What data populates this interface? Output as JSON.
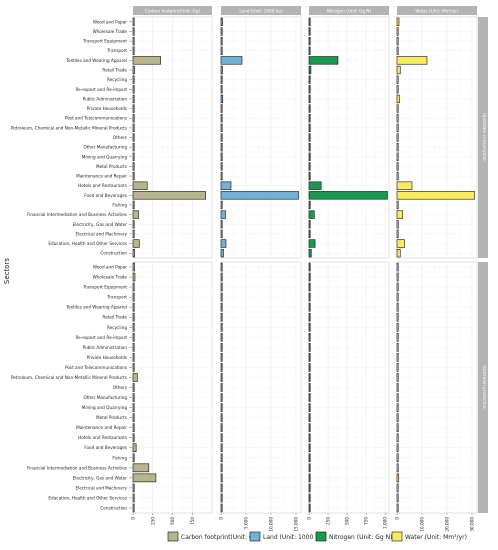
{
  "chart_data": {
    "type": "bar",
    "orientation": "horizontal",
    "facet_type": "grid",
    "ylabel": "Sectors",
    "categories": [
      "Wood and Paper",
      "Wholesale Trade",
      "Transport Equipment",
      "Transport",
      "Textiles and Wearing Apparel",
      "Retail Trade",
      "Recycling",
      "Re-export and Re-import",
      "Public Administration",
      "Private Households",
      "Post and Telecommunications",
      "Petroleum, Chemical and Non-Metallic Mineral Products",
      "Others",
      "Other Manufacturing",
      "Mining and Quarrying",
      "Metal Products",
      "Maintenance and Repair",
      "Hotels and Restaurants",
      "Food and Beverages",
      "Fishing",
      "Financial Intermediation and Business Activities",
      "Electricity, Gas and Water",
      "Electrical and Machinery",
      "Education, Health and Other Services",
      "Construction"
    ],
    "columns": [
      {
        "label": "Carbon footprint(Unit: Gg)",
        "color": "#b5b58f",
        "xlim": [
          0,
          1000
        ],
        "ticks": [
          0,
          250,
          500,
          750
        ]
      },
      {
        "label": "Land (Unit: 1000 ha)",
        "color": "#73b0d8",
        "xlim": [
          0,
          16000
        ],
        "ticks": [
          0,
          5000,
          10000,
          15000
        ]
      },
      {
        "label": "Nitrogen (Unit: Gg N)",
        "color": "#199950",
        "xlim": [
          0,
          1050
        ],
        "ticks": [
          0,
          250,
          500,
          750,
          1000
        ]
      },
      {
        "label": "Water (Unit: Mm³/yr)",
        "color": "#f7eb5f",
        "xlim": [
          0,
          32000
        ],
        "ticks": [
          0,
          10000,
          20000,
          30000
        ]
      }
    ],
    "rows": [
      {
        "label": "Upstream consumption",
        "series": [
          {
            "column": 0,
            "values": [
              15,
              6,
              4,
              5,
              350,
              20,
              5,
              5,
              12,
              5,
              5,
              8,
              5,
              6,
              5,
              5,
              5,
              180,
              920,
              5,
              70,
              8,
              6,
              80,
              20
            ]
          },
          {
            "column": 1,
            "values": [
              300,
              100,
              80,
              90,
              4200,
              300,
              60,
              60,
              350,
              60,
              60,
              150,
              60,
              100,
              60,
              60,
              60,
              2000,
              15500,
              60,
              900,
              150,
              100,
              1000,
              500
            ]
          },
          {
            "column": 2,
            "values": [
              15,
              5,
              4,
              5,
              380,
              25,
              4,
              4,
              15,
              4,
              4,
              8,
              4,
              6,
              4,
              4,
              4,
              160,
              1030,
              4,
              70,
              8,
              5,
              80,
              30
            ]
          },
          {
            "column": 3,
            "values": [
              800,
              300,
              300,
              300,
              12000,
              1300,
              200,
              200,
              1000,
              200,
              200,
              500,
              200,
              300,
              200,
              200,
              200,
              6000,
              31000,
              200,
              2300,
              500,
              300,
              3000,
              1300
            ]
          }
        ]
      },
      {
        "label": "Upstream production",
        "series": [
          {
            "column": 0,
            "values": [
              20,
              25,
              8,
              15,
              6,
              6,
              5,
              5,
              5,
              5,
              5,
              55,
              5,
              8,
              15,
              10,
              5,
              5,
              40,
              5,
              200,
              290,
              15,
              10,
              5
            ]
          },
          {
            "column": 1,
            "values": [
              150,
              120,
              80,
              100,
              60,
              60,
              50,
              50,
              50,
              50,
              50,
              200,
              50,
              80,
              100,
              80,
              50,
              50,
              150,
              50,
              200,
              250,
              100,
              80,
              50
            ]
          },
          {
            "column": 2,
            "values": [
              4,
              4,
              3,
              4,
              3,
              3,
              3,
              3,
              3,
              3,
              3,
              6,
              3,
              3,
              4,
              3,
              3,
              3,
              5,
              3,
              6,
              8,
              4,
              3,
              3
            ]
          },
          {
            "column": 3,
            "values": [
              300,
              300,
              200,
              300,
              200,
              200,
              200,
              200,
              200,
              200,
              200,
              500,
              200,
              300,
              300,
              300,
              200,
              200,
              400,
              200,
              500,
              700,
              300,
              300,
              200
            ]
          }
        ]
      }
    ],
    "legend": {
      "position": "bottom",
      "entries": [
        {
          "name": "Carbon footprint(Unit: Gg)",
          "color": "#b5b58f"
        },
        {
          "name": "Land (Unit: 1000 ha)",
          "color": "#73b0d8"
        },
        {
          "name": "Nitrogen (Unit: Gg N)",
          "color": "#199950"
        },
        {
          "name": "Water (Unit: Mm³/yr)",
          "color": "#f7eb5f"
        }
      ]
    },
    "grid": true
  }
}
